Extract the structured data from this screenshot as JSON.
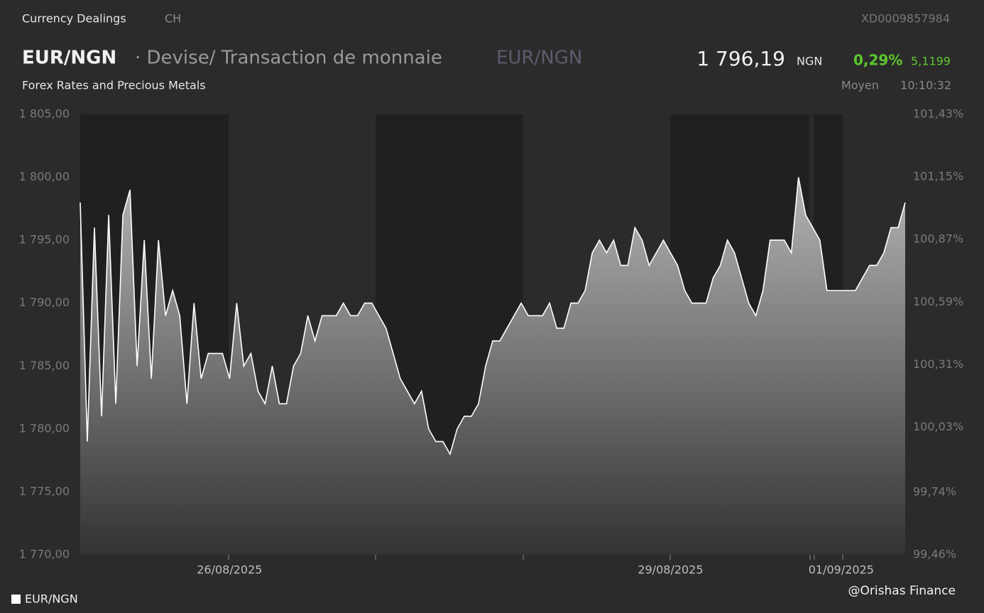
{
  "header": {
    "section": "Currency Dealings",
    "country": "CH",
    "isin": "XD0009857984",
    "symbol": "EUR/NGN",
    "description": "· Devise/ Transaction de monnaie",
    "symbol_alt": "EUR/NGN",
    "category": "Forex Rates and Precious Metals",
    "price": "1 796,19",
    "currency": "NGN",
    "change_pct": "0,29%",
    "change_abs": "5,1199",
    "price_type": "Moyen",
    "time": "10:10:32",
    "watermark": "@Orishas Finance"
  },
  "chart_data": {
    "type": "area",
    "categories": [
      null,
      null,
      null,
      null,
      null,
      null,
      null,
      null,
      null,
      null,
      null,
      null,
      null,
      null,
      null,
      null,
      null,
      null,
      null,
      null,
      null,
      "26/08/2025",
      null,
      null,
      null,
      null,
      null,
      null,
      null,
      null,
      null,
      null,
      null,
      null,
      null,
      null,
      null,
      null,
      null,
      null,
      null,
      null,
      null,
      null,
      null,
      null,
      null,
      null,
      null,
      null,
      null,
      null,
      null,
      null,
      null,
      null,
      null,
      null,
      null,
      null,
      null,
      null,
      null,
      null,
      null,
      null,
      null,
      null,
      null,
      null,
      null,
      null,
      null,
      null,
      null,
      null,
      null,
      null,
      null,
      null,
      null,
      null,
      null,
      "29/08/2025",
      null,
      null,
      null,
      null,
      null,
      null,
      null,
      null,
      null,
      null,
      null,
      null,
      null,
      null,
      null,
      null,
      null,
      null,
      null,
      null,
      null,
      null,
      null,
      "01/09/2025",
      null,
      null,
      null,
      null,
      null,
      null,
      null,
      null,
      null
    ],
    "series": [
      {
        "name": "EUR/NGN",
        "color": "#ffffff",
        "values": [
          1798,
          1779,
          1796,
          1781,
          1797,
          1782,
          1797,
          1799,
          1785,
          1795,
          1784,
          1795,
          1789,
          1791,
          1789,
          1782,
          1790,
          1784,
          1786,
          1786,
          1786,
          1784,
          1790,
          1785,
          1786,
          1783,
          1782,
          1785,
          1782,
          1782,
          1785,
          1786,
          1789,
          1787,
          1789,
          1789,
          1789,
          1790,
          1789,
          1789,
          1790,
          1790,
          1789,
          1788,
          1786,
          1784,
          1783,
          1782,
          1783,
          1780,
          1779,
          1779,
          1778,
          1780,
          1781,
          1781,
          1782,
          1785,
          1787,
          1787,
          1788,
          1789,
          1790,
          1789,
          1789,
          1789,
          1790,
          1788,
          1788,
          1790,
          1790,
          1791,
          1794,
          1795,
          1794,
          1795,
          1793,
          1793,
          1796,
          1795,
          1793,
          1794,
          1795,
          1794,
          1793,
          1791,
          1790,
          1790,
          1790,
          1792,
          1793,
          1795,
          1794,
          1792,
          1790,
          1789,
          1791,
          1795,
          1795,
          1795,
          1794,
          1800,
          1797,
          1796,
          1795,
          1791,
          1791,
          1791,
          1791,
          1791,
          1792,
          1793,
          1793,
          1794,
          1796,
          1796,
          1798
        ]
      }
    ],
    "ylim": [
      1770,
      1805
    ],
    "yticks": [
      {
        "value": 1770,
        "label": "1 770,00"
      },
      {
        "value": 1775,
        "label": "1 775,00"
      },
      {
        "value": 1780,
        "label": "1 780,00"
      },
      {
        "value": 1785,
        "label": "1 785,00"
      },
      {
        "value": 1790,
        "label": "1 790,00"
      },
      {
        "value": 1795,
        "label": "1 795,00"
      },
      {
        "value": 1800,
        "label": "1 800,00"
      },
      {
        "value": 1805,
        "label": "1 805,00"
      }
    ],
    "y2lim": [
      99.46,
      101.43
    ],
    "y2ticks": [
      {
        "value": 99.46,
        "label": "99,46%"
      },
      {
        "value": 99.74,
        "label": "99,74%"
      },
      {
        "value": 100.03,
        "label": "100,03%"
      },
      {
        "value": 100.31,
        "label": "100,31%"
      },
      {
        "value": 100.59,
        "label": "100,59%"
      },
      {
        "value": 100.87,
        "label": "100,87%"
      },
      {
        "value": 101.15,
        "label": "101,15%"
      },
      {
        "value": 101.43,
        "label": "101,43%"
      }
    ]
  }
}
